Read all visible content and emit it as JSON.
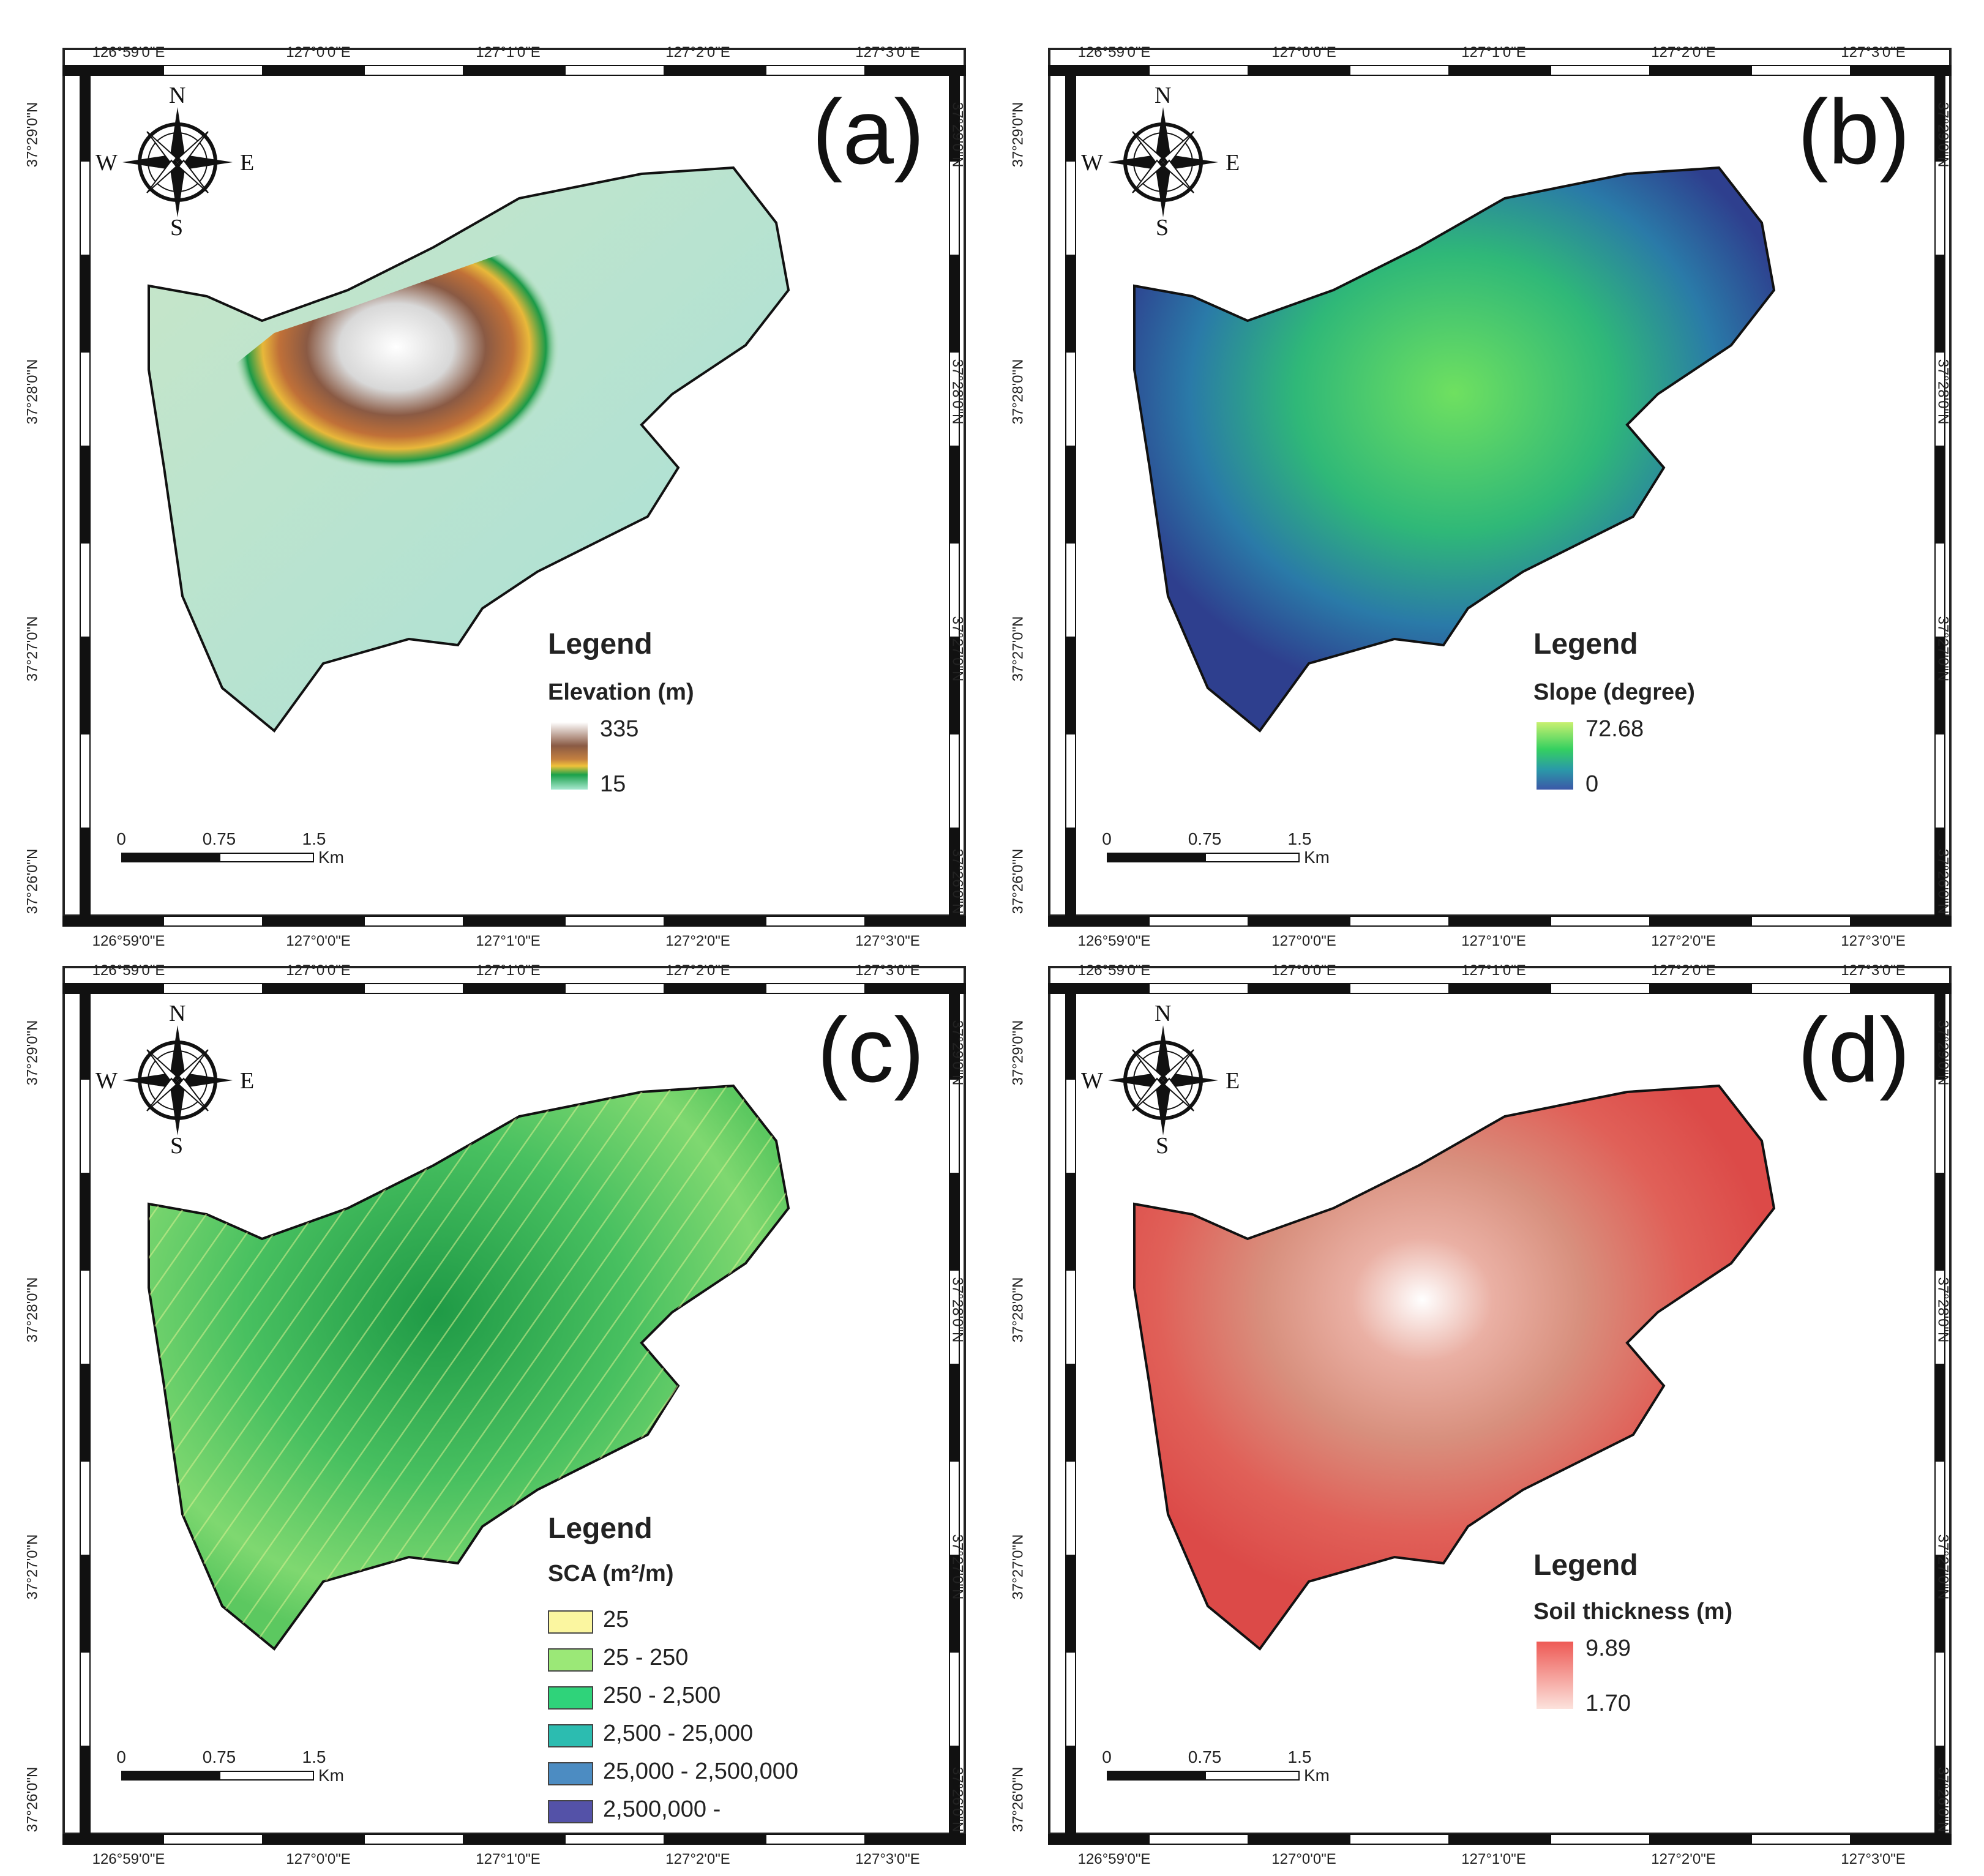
{
  "coords": {
    "lon": [
      "126°59'0\"E",
      "127°0'0\"E",
      "127°1'0\"E",
      "127°2'0\"E",
      "127°3'0\"E"
    ],
    "lat": [
      "37°29'0\"N",
      "37°28'0\"N",
      "37°27'0\"N",
      "37°26'0\"N"
    ]
  },
  "compass": {
    "n": "N",
    "s": "S",
    "e": "E",
    "w": "W"
  },
  "scale_bar": {
    "t0": "0",
    "t1": "0.75",
    "t2": "1.5",
    "unit": "Km"
  },
  "panels": {
    "a": {
      "label": "(a)",
      "legend_title": "Legend",
      "legend_sub": "Elevation (m)",
      "max": "335",
      "min": "15"
    },
    "b": {
      "label": "(b)",
      "legend_title": "Legend",
      "legend_sub": "Slope (degree)",
      "max": "72.68",
      "min": "0"
    },
    "c": {
      "label": "(c)",
      "legend_title": "Legend",
      "legend_sub": "SCA (m²/m)",
      "classes": [
        "25",
        "25 - 250",
        "250 - 2,500",
        "2,500 - 25,000",
        "25,000 - 2,500,000",
        "2,500,000 -"
      ]
    },
    "d": {
      "label": "(d)",
      "legend_title": "Legend",
      "legend_sub": "Soil thickness (m)",
      "max": "9.89",
      "min": "1.70"
    }
  },
  "colors": {
    "sca": [
      "#fbf6a0",
      "#9be877",
      "#2fd37a",
      "#2cbcb0",
      "#4c8cc2",
      "#5452a8"
    ],
    "elev_ramp": [
      "#ffffff",
      "#8a5a44",
      "#c48040",
      "#f0c23a",
      "#1aa14a",
      "#a8e8d0"
    ],
    "slope_ramp": [
      "#c8f070",
      "#35d060",
      "#2a9aa8",
      "#3c58a8"
    ],
    "soil_ramp": [
      "#ee5a55",
      "#fce2dc"
    ]
  }
}
